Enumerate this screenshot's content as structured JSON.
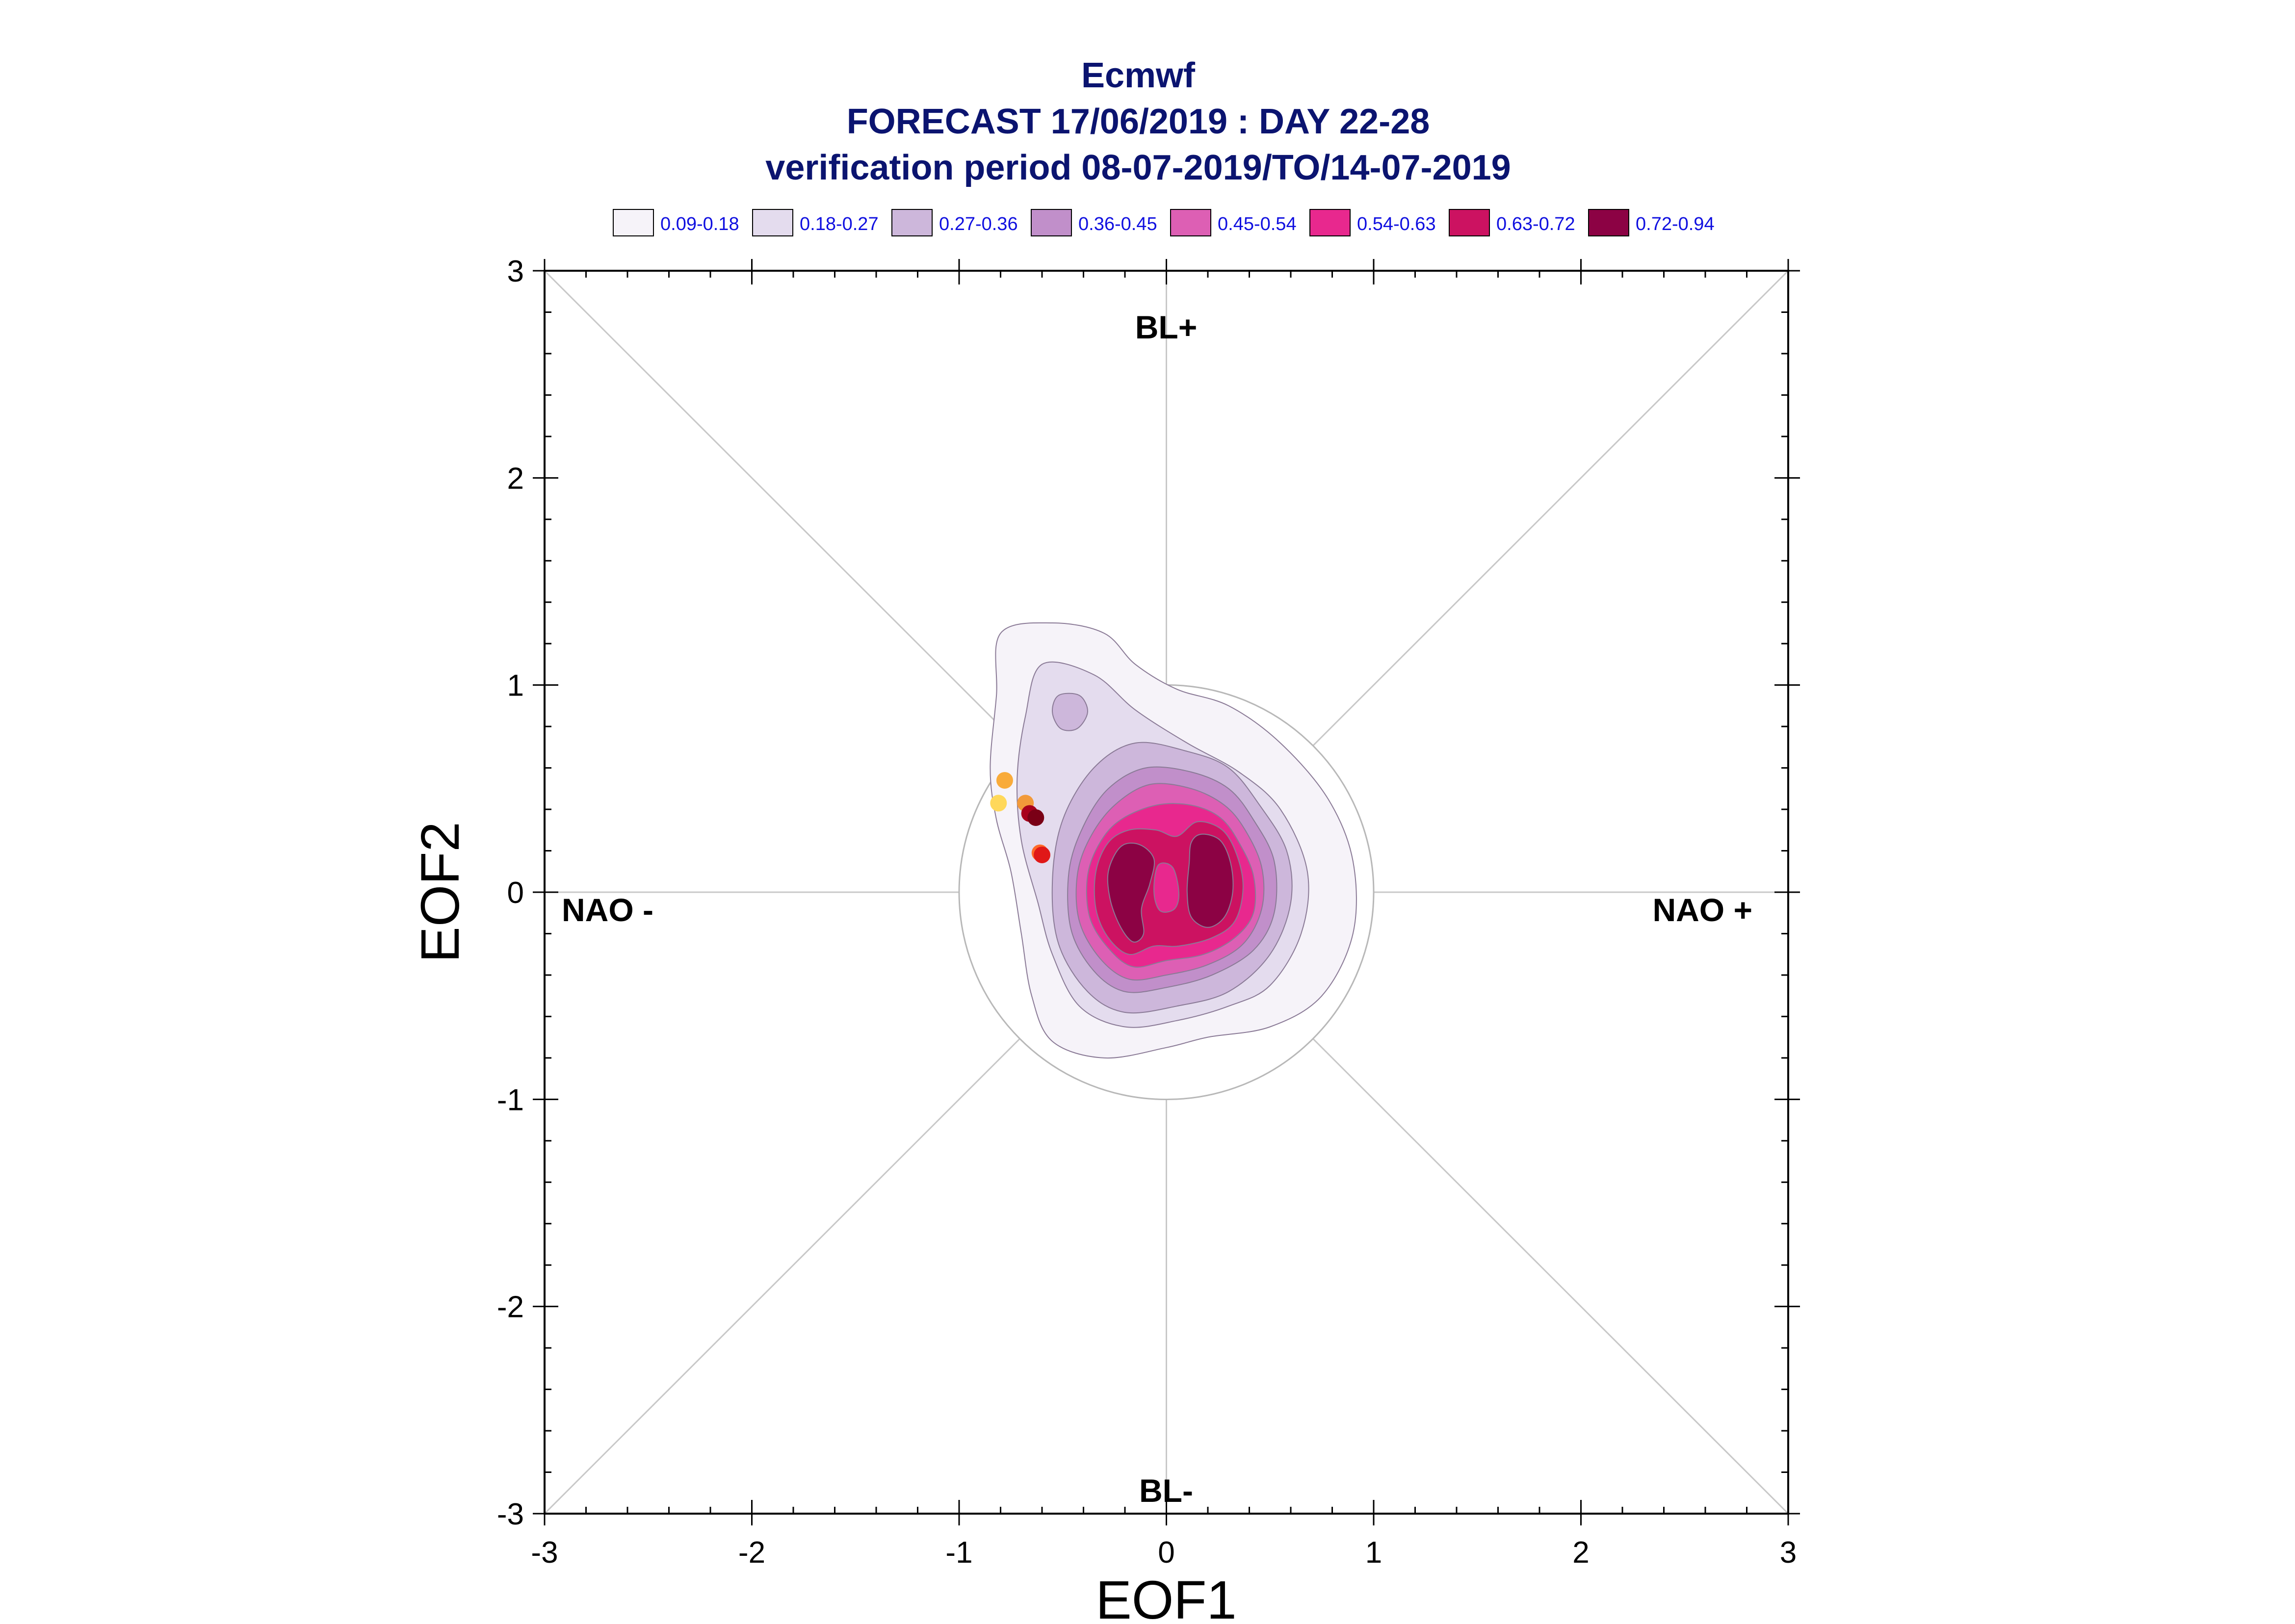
{
  "chart_data": {
    "type": "scatter",
    "title": "Ecmwf",
    "subtitle": "FORECAST 17/06/2019 : DAY 22-28",
    "subtitle2": "verification period 08-07-2019/TO/14-07-2019",
    "xlabel": "EOF1",
    "ylabel": "EOF2",
    "xlim": [
      -3,
      3
    ],
    "ylim": [
      -3,
      3
    ],
    "xticks": [
      "-3",
      "-2",
      "-1",
      "0",
      "1",
      "2",
      "3"
    ],
    "yticks": [
      "-3",
      "-2",
      "-1",
      "0",
      "1",
      "2",
      "3"
    ],
    "regime_labels": {
      "top": "BL+",
      "bottom": "BL-",
      "left": "NAO -",
      "right": "NAO +"
    },
    "reference_circle_radius": 1,
    "legend_placement": "top",
    "legend": [
      {
        "label": "0.09-0.18",
        "color": "#f6f3f9"
      },
      {
        "label": "0.18-0.27",
        "color": "#e4dcee"
      },
      {
        "label": "0.27-0.36",
        "color": "#cdb7db"
      },
      {
        "label": "0.36-0.45",
        "color": "#c18fca"
      },
      {
        "label": "0.45-0.54",
        "color": "#dd5fb4"
      },
      {
        "label": "0.54-0.63",
        "color": "#e8288e"
      },
      {
        "label": "0.63-0.72",
        "color": "#cc1261"
      },
      {
        "label": "0.72-0.94",
        "color": "#8c0244"
      }
    ],
    "density_contours": [
      {
        "level": "0.09-0.18",
        "color": "#f6f3f9",
        "points": [
          [
            -0.8,
            1.25
          ],
          [
            -0.55,
            1.3
          ],
          [
            -0.3,
            1.25
          ],
          [
            -0.15,
            1.1
          ],
          [
            0.05,
            0.98
          ],
          [
            0.3,
            0.9
          ],
          [
            0.55,
            0.72
          ],
          [
            0.78,
            0.45
          ],
          [
            0.9,
            0.15
          ],
          [
            0.9,
            -0.2
          ],
          [
            0.75,
            -0.5
          ],
          [
            0.5,
            -0.65
          ],
          [
            0.2,
            -0.7
          ],
          [
            0,
            -0.75
          ],
          [
            -0.3,
            -0.8
          ],
          [
            -0.55,
            -0.72
          ],
          [
            -0.65,
            -0.5
          ],
          [
            -0.7,
            -0.2
          ],
          [
            -0.75,
            0.1
          ],
          [
            -0.82,
            0.35
          ],
          [
            -0.85,
            0.6
          ],
          [
            -0.82,
            0.95
          ]
        ]
      },
      {
        "level": "0.18-0.27",
        "color": "#e4dcee",
        "points": [
          [
            -0.6,
            1.1
          ],
          [
            -0.35,
            1.05
          ],
          [
            -0.15,
            0.88
          ],
          [
            0.1,
            0.72
          ],
          [
            0.35,
            0.58
          ],
          [
            0.55,
            0.4
          ],
          [
            0.68,
            0.1
          ],
          [
            0.65,
            -0.2
          ],
          [
            0.5,
            -0.45
          ],
          [
            0.3,
            -0.55
          ],
          [
            0.05,
            -0.62
          ],
          [
            -0.2,
            -0.65
          ],
          [
            -0.42,
            -0.55
          ],
          [
            -0.55,
            -0.3
          ],
          [
            -0.62,
            -0.05
          ],
          [
            -0.7,
            0.25
          ],
          [
            -0.72,
            0.55
          ],
          [
            -0.68,
            0.85
          ]
        ]
      },
      {
        "level": "0.27-0.36",
        "color": "#cdb7db",
        "points": [
          [
            -0.35,
            0.6
          ],
          [
            -0.15,
            0.72
          ],
          [
            0.1,
            0.68
          ],
          [
            0.3,
            0.6
          ],
          [
            0.45,
            0.42
          ],
          [
            0.58,
            0.2
          ],
          [
            0.6,
            -0.05
          ],
          [
            0.5,
            -0.3
          ],
          [
            0.3,
            -0.48
          ],
          [
            0.05,
            -0.55
          ],
          [
            -0.2,
            -0.58
          ],
          [
            -0.38,
            -0.48
          ],
          [
            -0.52,
            -0.25
          ],
          [
            -0.55,
            0.05
          ],
          [
            -0.5,
            0.35
          ]
        ]
      },
      {
        "level": "0.27-0.36",
        "color": "#cdb7db",
        "points": [
          [
            -0.52,
            0.95
          ],
          [
            -0.42,
            0.95
          ],
          [
            -0.38,
            0.87
          ],
          [
            -0.43,
            0.79
          ],
          [
            -0.51,
            0.79
          ],
          [
            -0.55,
            0.87
          ]
        ]
      },
      {
        "level": "0.36-0.45",
        "color": "#c18fca",
        "points": [
          [
            -0.28,
            0.5
          ],
          [
            -0.1,
            0.6
          ],
          [
            0.12,
            0.58
          ],
          [
            0.3,
            0.5
          ],
          [
            0.42,
            0.35
          ],
          [
            0.52,
            0.15
          ],
          [
            0.52,
            -0.1
          ],
          [
            0.42,
            -0.28
          ],
          [
            0.22,
            -0.4
          ],
          [
            0.0,
            -0.46
          ],
          [
            -0.2,
            -0.48
          ],
          [
            -0.35,
            -0.38
          ],
          [
            -0.46,
            -0.18
          ],
          [
            -0.47,
            0.1
          ],
          [
            -0.4,
            0.32
          ]
        ]
      },
      {
        "level": "0.45-0.54",
        "color": "#dd5fb4",
        "points": [
          [
            -0.25,
            0.42
          ],
          [
            -0.08,
            0.52
          ],
          [
            0.12,
            0.5
          ],
          [
            0.28,
            0.42
          ],
          [
            0.38,
            0.3
          ],
          [
            0.46,
            0.12
          ],
          [
            0.46,
            -0.08
          ],
          [
            0.37,
            -0.25
          ],
          [
            0.2,
            -0.35
          ],
          [
            0.0,
            -0.4
          ],
          [
            -0.18,
            -0.42
          ],
          [
            -0.32,
            -0.32
          ],
          [
            -0.42,
            -0.14
          ],
          [
            -0.43,
            0.08
          ],
          [
            -0.37,
            0.26
          ]
        ]
      },
      {
        "level": "0.54-0.63",
        "color": "#e8288e",
        "points": [
          [
            -0.22,
            0.35
          ],
          [
            -0.05,
            0.42
          ],
          [
            0.12,
            0.42
          ],
          [
            0.26,
            0.36
          ],
          [
            0.35,
            0.24
          ],
          [
            0.42,
            0.08
          ],
          [
            0.42,
            -0.1
          ],
          [
            0.33,
            -0.22
          ],
          [
            0.18,
            -0.3
          ],
          [
            0.0,
            -0.33
          ],
          [
            -0.16,
            -0.36
          ],
          [
            -0.28,
            -0.27
          ],
          [
            -0.37,
            -0.12
          ],
          [
            -0.38,
            0.08
          ],
          [
            -0.32,
            0.24
          ]
        ]
      },
      {
        "level": "0.63-0.72",
        "color": "#cc1261",
        "points": [
          [
            -0.18,
            0.3
          ],
          [
            -0.05,
            0.3
          ],
          [
            0.05,
            0.27
          ],
          [
            0.15,
            0.34
          ],
          [
            0.27,
            0.3
          ],
          [
            0.34,
            0.18
          ],
          [
            0.37,
            0.02
          ],
          [
            0.33,
            -0.14
          ],
          [
            0.22,
            -0.22
          ],
          [
            0.06,
            -0.26
          ],
          [
            -0.06,
            -0.26
          ],
          [
            -0.18,
            -0.3
          ],
          [
            -0.28,
            -0.22
          ],
          [
            -0.34,
            -0.08
          ],
          [
            -0.34,
            0.1
          ],
          [
            -0.28,
            0.24
          ]
        ]
      },
      {
        "level": "0.72-0.94",
        "color": "#8c0244",
        "points": [
          [
            -0.22,
            0.22
          ],
          [
            -0.13,
            0.23
          ],
          [
            -0.06,
            0.16
          ],
          [
            -0.08,
            0.04
          ],
          [
            -0.12,
            -0.08
          ],
          [
            -0.11,
            -0.2
          ],
          [
            -0.16,
            -0.24
          ],
          [
            -0.22,
            -0.17
          ],
          [
            -0.27,
            -0.04
          ],
          [
            -0.28,
            0.1
          ]
        ]
      },
      {
        "level": "0.72-0.94",
        "color": "#8c0244",
        "points": [
          [
            0.17,
            0.28
          ],
          [
            0.26,
            0.25
          ],
          [
            0.31,
            0.14
          ],
          [
            0.32,
            0.0
          ],
          [
            0.28,
            -0.12
          ],
          [
            0.2,
            -0.17
          ],
          [
            0.12,
            -0.12
          ],
          [
            0.1,
            0.0
          ],
          [
            0.11,
            0.14
          ],
          [
            0.12,
            0.24
          ]
        ]
      },
      {
        "level": "0.54-0.63",
        "color": "#e8288e",
        "points": [
          [
            -0.04,
            0.13
          ],
          [
            0.03,
            0.12
          ],
          [
            0.06,
            0.0
          ],
          [
            0.04,
            -0.08
          ],
          [
            -0.03,
            -0.09
          ],
          [
            -0.06,
            0.0
          ]
        ]
      }
    ],
    "points": [
      {
        "x": -0.81,
        "y": 0.43,
        "color": "#ffd85a"
      },
      {
        "x": -0.78,
        "y": 0.54,
        "color": "#f9ab3a"
      },
      {
        "x": -0.68,
        "y": 0.43,
        "color": "#f29a3a"
      },
      {
        "x": -0.66,
        "y": 0.38,
        "color": "#a8001c"
      },
      {
        "x": -0.63,
        "y": 0.36,
        "color": "#7a0016"
      },
      {
        "x": -0.61,
        "y": 0.19,
        "color": "#ff6a2a"
      },
      {
        "x": -0.6,
        "y": 0.18,
        "color": "#e01818"
      }
    ],
    "grid": false
  }
}
